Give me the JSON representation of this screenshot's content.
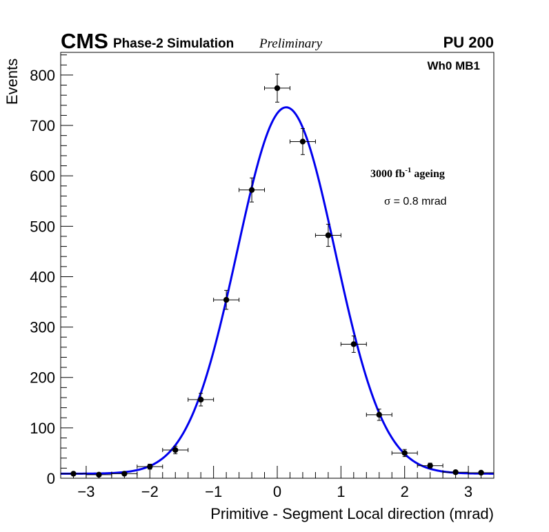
{
  "chart_data": {
    "type": "scatter",
    "header": {
      "experiment": "CMS",
      "label": "Phase-2 Simulation",
      "status": "Preliminary",
      "pileup": "PU 200"
    },
    "xlabel": "Primitive - Segment Local direction (mrad)",
    "ylabel": "Events",
    "xlim": [
      -3.4,
      3.4
    ],
    "ylim": [
      0,
      845
    ],
    "xticks": [
      -3,
      -2,
      -1,
      0,
      1,
      2,
      3
    ],
    "xtick_labels": [
      "−3",
      "−2",
      "−1",
      "0",
      "1",
      "2",
      "3"
    ],
    "yticks": [
      0,
      100,
      200,
      300,
      400,
      500,
      600,
      700,
      800
    ],
    "ytick_labels": [
      "0",
      "100",
      "200",
      "300",
      "400",
      "500",
      "600",
      "700",
      "800"
    ],
    "annotations": {
      "chamber": "Wh0 MB1",
      "ageing_value": "3000 fb",
      "ageing_exponent": "-1",
      "ageing_suffix": " ageing",
      "sigma_symbol": "σ",
      "sigma_text": " = 0.8 mrad"
    },
    "series": [
      {
        "name": "Simulation",
        "type": "scatter",
        "color": "#000000",
        "bin_half_width": 0.2,
        "x": [
          -3.2,
          -2.8,
          -2.4,
          -2.0,
          -1.6,
          -1.2,
          -0.8,
          -0.4,
          0.0,
          0.4,
          0.8,
          1.2,
          1.6,
          2.0,
          2.4,
          2.8,
          3.2
        ],
        "y": [
          9,
          7,
          9,
          23,
          56,
          156,
          354,
          572,
          774,
          668,
          482,
          266,
          126,
          50,
          25,
          12,
          11
        ],
        "yerr": [
          3,
          3,
          3,
          5,
          7.5,
          12.5,
          18.8,
          23.9,
          27.8,
          25.8,
          22,
          16.3,
          11.2,
          7.1,
          5,
          3.5,
          3.3
        ]
      },
      {
        "name": "Gaussian fit",
        "type": "line",
        "color": "#0000ee",
        "mean": 0.14,
        "sigma": 0.77,
        "amplitude": 727,
        "constant": 9
      }
    ]
  }
}
